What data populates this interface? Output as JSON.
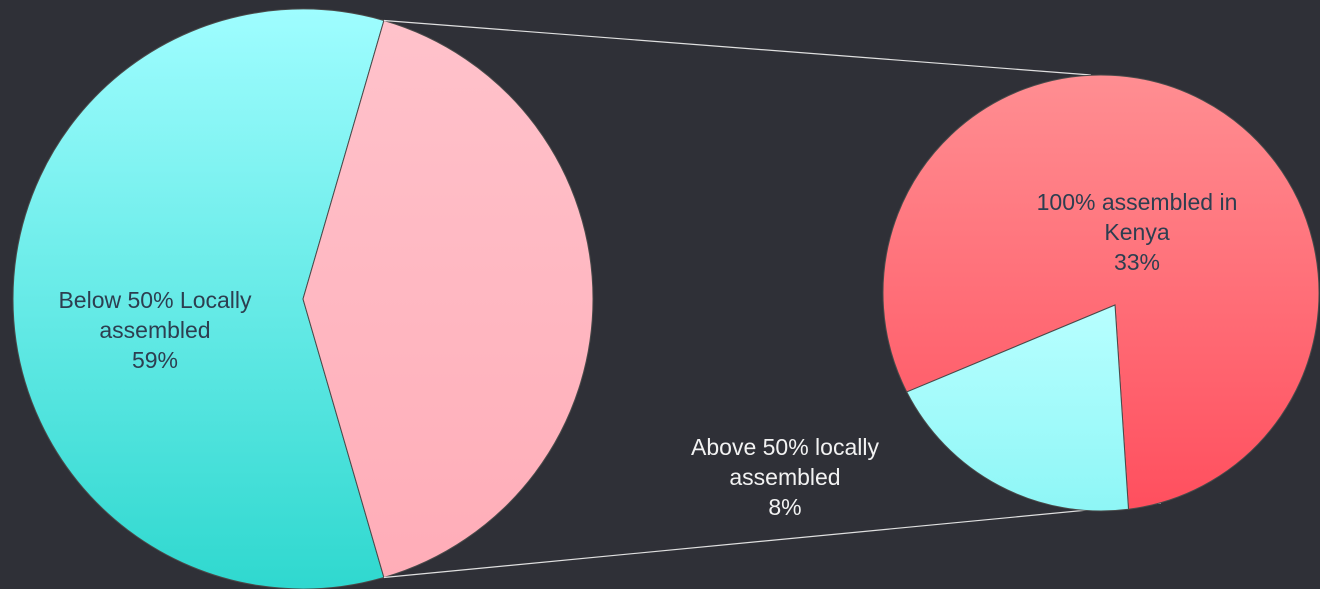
{
  "chart_data": {
    "type": "pie",
    "subtype": "pie-of-pie",
    "slices": [
      {
        "label_lines": [
          "Below 50% Locally",
          "assembled"
        ],
        "value": 59,
        "value_label": "59%",
        "color": "#5fe8e2",
        "color_light": "#9ffdff",
        "color_dark": "#2fd8cf",
        "in_secondary": false
      },
      {
        "label_lines": [
          "100% assembled in",
          "Kenya"
        ],
        "value": 33,
        "value_label": "33%",
        "color": "#ff6a74",
        "color_light": "#ff8e92",
        "color_dark": "#ff4f5e",
        "in_secondary": true
      },
      {
        "label_lines": [
          "Above 50% locally",
          "assembled"
        ],
        "value": 8,
        "value_label": "8%",
        "color": "#a5fdff",
        "color_light": "#b8ffff",
        "color_dark": "#8ef6f6",
        "in_secondary": true
      }
    ],
    "other_slice": {
      "color": "#ffb8c2",
      "color_light": "#ffc2cb",
      "color_dark": "#ffadb8"
    },
    "connector_color": "#e0e0e0",
    "background": "#2f3037"
  }
}
